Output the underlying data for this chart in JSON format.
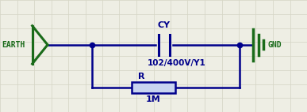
{
  "bg_color": "#eeeee4",
  "grid_color": "#d4d4c4",
  "blue": "#00008B",
  "green": "#1a6b1a",
  "earth_label": "EARTH",
  "gnd_label": "GND",
  "cy_label": "CY",
  "cy_value": "102/400V/Y1",
  "r_label": "R",
  "r_value": "1M",
  "figw": 3.87,
  "figh": 1.42,
  "dpi": 100
}
